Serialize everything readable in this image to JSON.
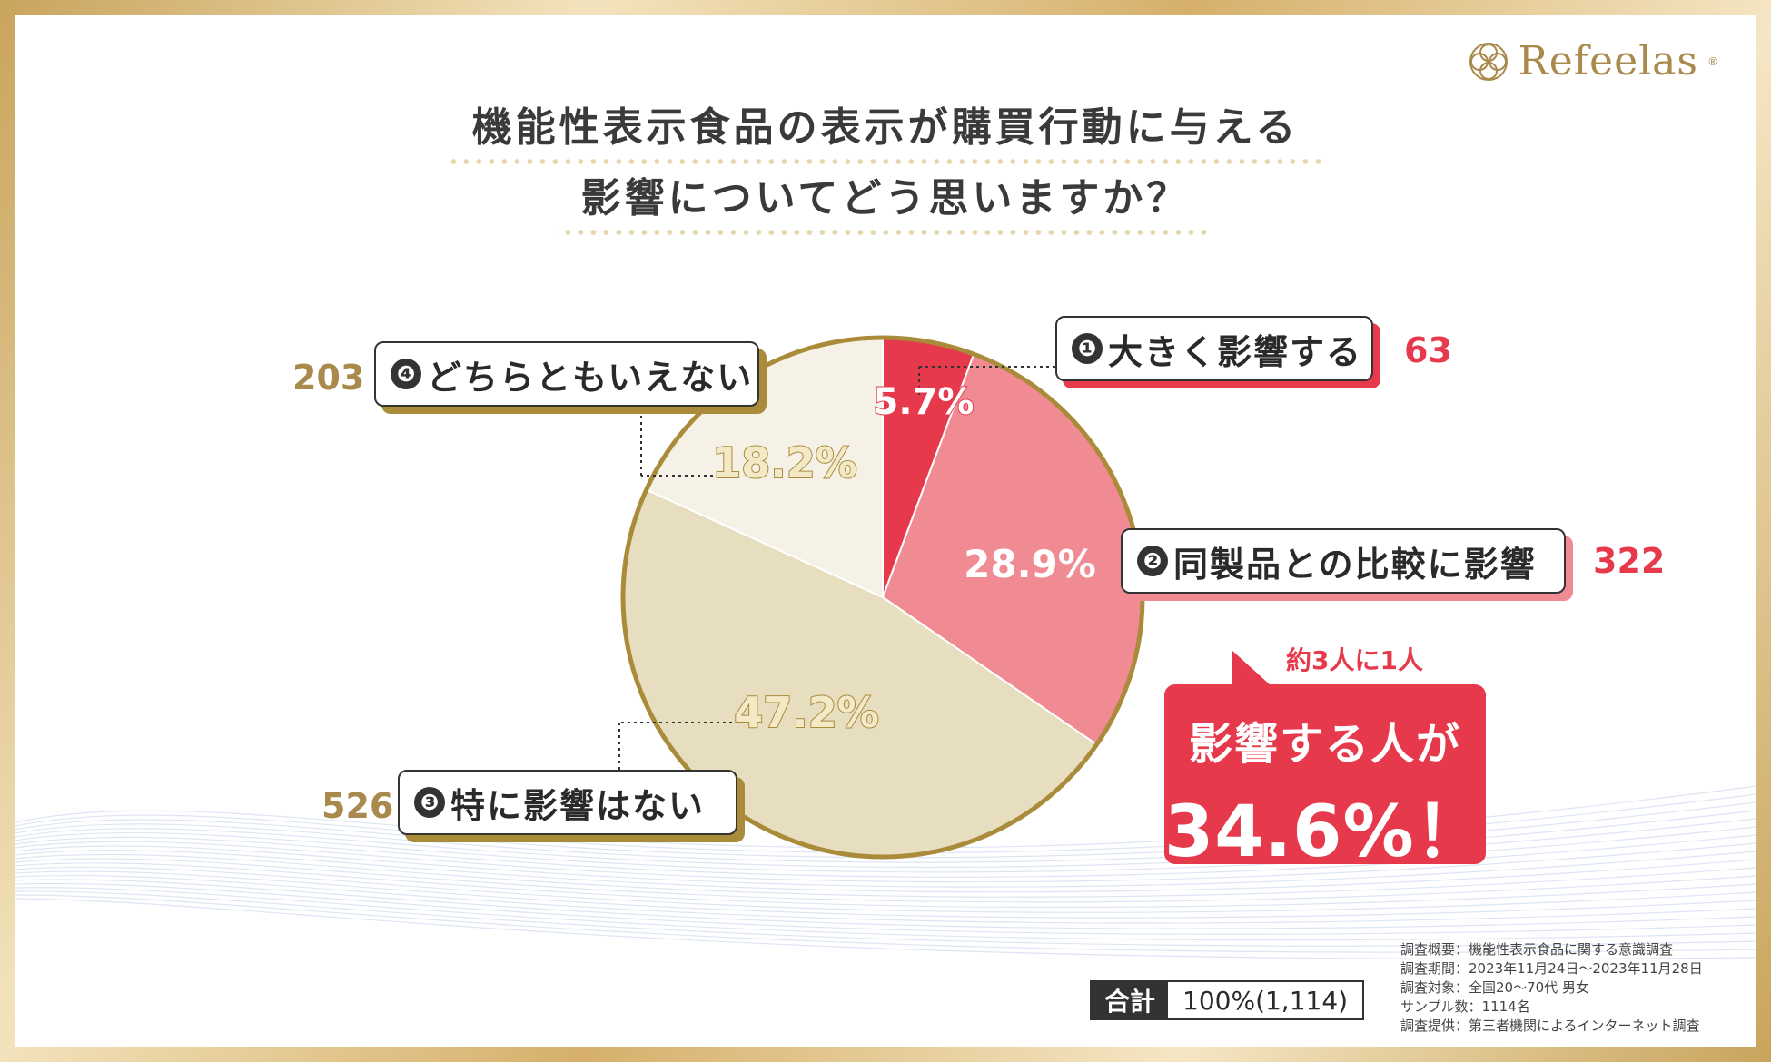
{
  "brand": {
    "name": "Refeelas",
    "mark": "®"
  },
  "title": {
    "line1": "機能性表示食品の表示が購買行動に与える",
    "line2": "影響についてどう思いますか？"
  },
  "chart_data": {
    "type": "pie",
    "title": "機能性表示食品の表示が購買行動に与える影響についてどう思いますか？",
    "slices": [
      {
        "num": "❶",
        "label": "大きく影響する",
        "percent": 5.7,
        "percent_label": "5.7%",
        "count": "63",
        "color": "#e63a4c"
      },
      {
        "num": "❷",
        "label": "同製品との比較に影響",
        "percent": 28.9,
        "percent_label": "28.9%",
        "count": "322",
        "color": "#f08a93"
      },
      {
        "num": "❸",
        "label": "特に影響はない",
        "percent": 47.2,
        "percent_label": "47.2%",
        "count": "526",
        "color": "#e7dec0"
      },
      {
        "num": "❹",
        "label": "どちらともいえない",
        "percent": 18.2,
        "percent_label": "18.2%",
        "count": "203",
        "color": "#f5f1e6"
      }
    ]
  },
  "highlight": {
    "caption": "約3人に1人",
    "line1": "影響する人が",
    "line2": "34.6%！"
  },
  "total": {
    "key": "合計",
    "value": "100%(1,114)"
  },
  "notes": [
    "調査概要：機能性表示食品に関する意識調査",
    "調査期間：2023年11月24日〜2023年11月28日",
    "調査対象：全国20〜70代 男女",
    "サンプル数：1114名",
    "調査提供：第三者機関によるインターネット調査"
  ],
  "colors": {
    "gold": "#a98a4c",
    "red": "#e63a4c",
    "pie_border": "#a98b3a"
  }
}
